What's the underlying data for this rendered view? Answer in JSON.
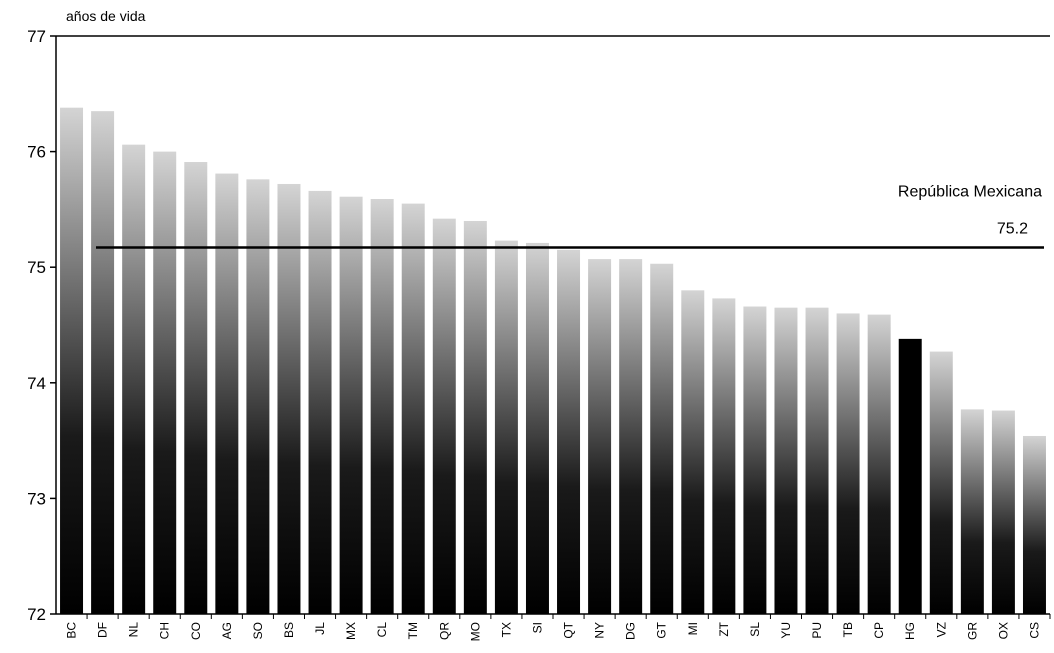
{
  "chart_data": {
    "type": "bar",
    "title": "",
    "xlabel": "",
    "ylabel": "años de vida",
    "ylim": [
      72,
      77
    ],
    "yticks": [
      "72",
      "73",
      "74",
      "75",
      "76",
      "77"
    ],
    "categories": [
      "BC",
      "DF",
      "NL",
      "CH",
      "CO",
      "AG",
      "SO",
      "BS",
      "JL",
      "MX",
      "CL",
      "TM",
      "QR",
      "MO",
      "TX",
      "SI",
      "QT",
      "NY",
      "DG",
      "GT",
      "MI",
      "ZT",
      "SL",
      "YU",
      "PU",
      "TB",
      "CP",
      "HG",
      "VZ",
      "GR",
      "OX",
      "CS"
    ],
    "values": [
      76.38,
      76.35,
      76.06,
      76.0,
      75.91,
      75.81,
      75.76,
      75.72,
      75.66,
      75.61,
      75.59,
      75.55,
      75.42,
      75.4,
      75.23,
      75.21,
      75.15,
      75.07,
      75.07,
      75.03,
      74.8,
      74.73,
      74.66,
      74.65,
      74.65,
      74.6,
      74.59,
      74.38,
      74.27,
      73.77,
      73.76,
      73.54
    ],
    "highlight_category": "HG",
    "bar_color_top": "#d4d4d4",
    "bar_color_bottom": "#000000",
    "highlight_color": "#000000",
    "reference_line": {
      "value": 75.17,
      "label": "República Mexicana",
      "value_label": "75.2"
    },
    "grid": false
  }
}
